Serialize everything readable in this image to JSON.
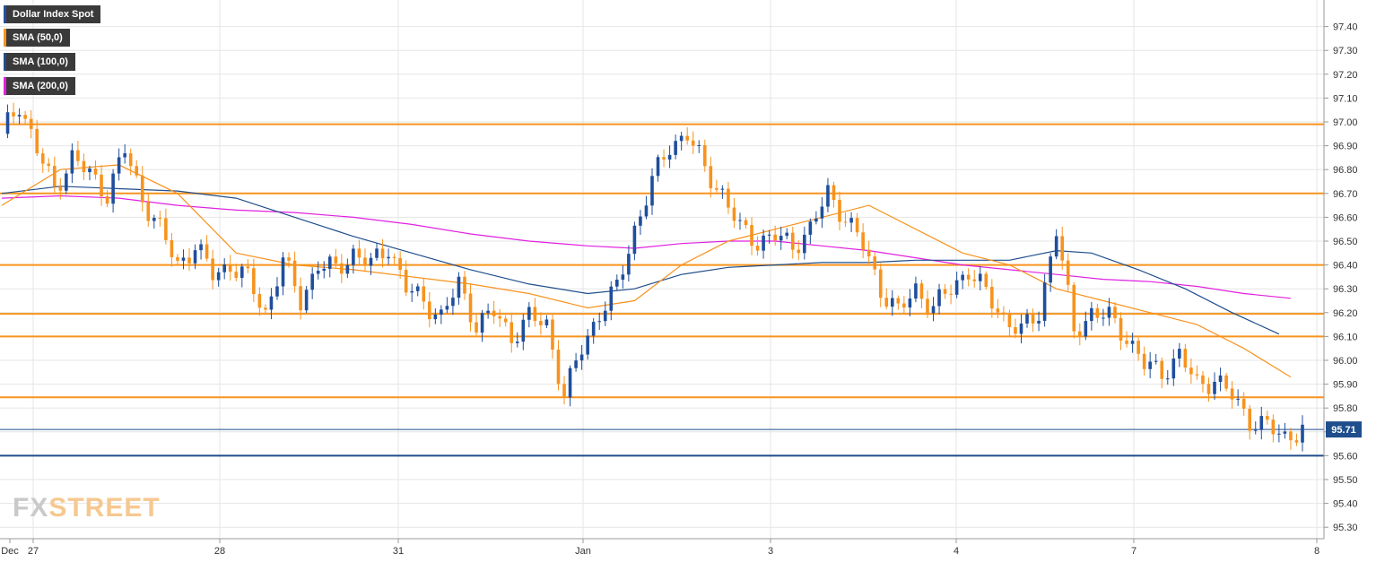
{
  "chart_data": {
    "type": "candlestick",
    "title": "Dollar Index Spot",
    "ylim": [
      95.25,
      97.5
    ],
    "yticks": [
      "97.40",
      "97.30",
      "97.20",
      "97.10",
      "97.00",
      "96.90",
      "96.80",
      "96.70",
      "96.60",
      "96.50",
      "96.40",
      "96.30",
      "96.20",
      "96.10",
      "96.00",
      "95.90",
      "95.80",
      "95.70",
      "95.60",
      "95.50",
      "95.40",
      "95.30"
    ],
    "xticks": [
      "Dec",
      "27",
      "28",
      "31",
      "Jan",
      "3",
      "4",
      "7",
      "8"
    ],
    "last_price": "95.71",
    "horizontal_levels": {
      "orange": [
        96.99,
        96.7,
        96.4,
        96.195,
        96.1,
        95.845
      ],
      "blue": [
        95.6
      ]
    },
    "legend": [
      {
        "name": "Dollar Index Spot",
        "color": "#2150a0"
      },
      {
        "name": "SMA (50,0)",
        "color": "#f7931e"
      },
      {
        "name": "SMA (100,0)",
        "color": "#1f4e8c"
      },
      {
        "name": "SMA (200,0)",
        "color": "#e020e0"
      }
    ],
    "candle_colors": {
      "up": "#1f4e9c",
      "down": "#f7931e"
    },
    "close_path": [
      [
        0,
        96.95
      ],
      [
        3,
        97.08
      ],
      [
        6,
        96.88
      ],
      [
        9,
        96.72
      ],
      [
        12,
        96.85
      ],
      [
        15,
        96.78
      ],
      [
        18,
        96.7
      ],
      [
        21,
        96.88
      ],
      [
        24,
        96.68
      ],
      [
        27,
        96.55
      ],
      [
        30,
        96.4
      ],
      [
        33,
        96.48
      ],
      [
        36,
        96.36
      ],
      [
        39,
        96.4
      ],
      [
        42,
        96.34
      ],
      [
        45,
        96.2
      ],
      [
        48,
        96.42
      ],
      [
        51,
        96.25
      ],
      [
        54,
        96.4
      ],
      [
        57,
        96.38
      ],
      [
        60,
        96.45
      ],
      [
        63,
        96.4
      ],
      [
        66,
        96.48
      ],
      [
        69,
        96.3
      ],
      [
        72,
        96.25
      ],
      [
        75,
        96.18
      ],
      [
        78,
        96.32
      ],
      [
        81,
        96.15
      ],
      [
        84,
        96.2
      ],
      [
        87,
        96.1
      ],
      [
        90,
        96.18
      ],
      [
        93,
        96.15
      ],
      [
        96,
        95.85
      ],
      [
        99,
        96.05
      ],
      [
        102,
        96.2
      ],
      [
        105,
        96.3
      ],
      [
        108,
        96.55
      ],
      [
        111,
        96.75
      ],
      [
        114,
        96.9
      ],
      [
        117,
        96.95
      ],
      [
        120,
        96.8
      ],
      [
        123,
        96.7
      ],
      [
        126,
        96.55
      ],
      [
        129,
        96.5
      ],
      [
        132,
        96.52
      ],
      [
        135,
        96.48
      ],
      [
        138,
        96.55
      ],
      [
        141,
        96.7
      ],
      [
        144,
        96.6
      ],
      [
        147,
        96.48
      ],
      [
        150,
        96.3
      ],
      [
        153,
        96.2
      ],
      [
        156,
        96.3
      ],
      [
        159,
        96.22
      ],
      [
        162,
        96.3
      ],
      [
        165,
        96.38
      ],
      [
        168,
        96.28
      ],
      [
        171,
        96.18
      ],
      [
        174,
        96.12
      ],
      [
        177,
        96.2
      ],
      [
        180,
        96.55
      ],
      [
        183,
        96.12
      ],
      [
        186,
        96.2
      ],
      [
        189,
        96.18
      ],
      [
        192,
        96.1
      ],
      [
        195,
        95.98
      ],
      [
        198,
        95.95
      ],
      [
        201,
        96.02
      ],
      [
        204,
        95.9
      ],
      [
        207,
        95.92
      ],
      [
        210,
        95.85
      ],
      [
        213,
        95.75
      ],
      [
        216,
        95.72
      ],
      [
        219,
        95.68
      ],
      [
        222,
        95.71
      ]
    ],
    "sma50": [
      [
        0,
        96.65
      ],
      [
        10,
        96.8
      ],
      [
        20,
        96.82
      ],
      [
        30,
        96.7
      ],
      [
        40,
        96.45
      ],
      [
        50,
        96.4
      ],
      [
        60,
        96.38
      ],
      [
        70,
        96.35
      ],
      [
        80,
        96.32
      ],
      [
        90,
        96.28
      ],
      [
        100,
        96.22
      ],
      [
        108,
        96.25
      ],
      [
        116,
        96.4
      ],
      [
        124,
        96.5
      ],
      [
        132,
        96.55
      ],
      [
        140,
        96.6
      ],
      [
        148,
        96.65
      ],
      [
        156,
        96.55
      ],
      [
        164,
        96.45
      ],
      [
        172,
        96.4
      ],
      [
        180,
        96.3
      ],
      [
        188,
        96.25
      ],
      [
        196,
        96.2
      ],
      [
        204,
        96.15
      ],
      [
        212,
        96.05
      ],
      [
        220,
        95.93
      ]
    ],
    "sma100": [
      [
        0,
        96.7
      ],
      [
        10,
        96.73
      ],
      [
        20,
        96.72
      ],
      [
        30,
        96.71
      ],
      [
        40,
        96.68
      ],
      [
        50,
        96.6
      ],
      [
        60,
        96.52
      ],
      [
        70,
        96.45
      ],
      [
        80,
        96.38
      ],
      [
        90,
        96.32
      ],
      [
        100,
        96.28
      ],
      [
        108,
        96.3
      ],
      [
        116,
        96.36
      ],
      [
        124,
        96.39
      ],
      [
        132,
        96.4
      ],
      [
        140,
        96.41
      ],
      [
        148,
        96.41
      ],
      [
        156,
        96.42
      ],
      [
        164,
        96.42
      ],
      [
        172,
        96.42
      ],
      [
        180,
        96.46
      ],
      [
        186,
        96.45
      ],
      [
        194,
        96.38
      ],
      [
        202,
        96.3
      ],
      [
        210,
        96.2
      ],
      [
        218,
        96.11
      ]
    ],
    "sma200": [
      [
        0,
        96.68
      ],
      [
        10,
        96.69
      ],
      [
        20,
        96.68
      ],
      [
        30,
        96.65
      ],
      [
        40,
        96.63
      ],
      [
        50,
        96.62
      ],
      [
        60,
        96.6
      ],
      [
        70,
        96.57
      ],
      [
        80,
        96.53
      ],
      [
        90,
        96.5
      ],
      [
        100,
        96.48
      ],
      [
        108,
        96.47
      ],
      [
        116,
        96.49
      ],
      [
        124,
        96.5
      ],
      [
        132,
        96.5
      ],
      [
        140,
        96.48
      ],
      [
        148,
        96.46
      ],
      [
        156,
        96.43
      ],
      [
        164,
        96.4
      ],
      [
        172,
        96.38
      ],
      [
        180,
        96.36
      ],
      [
        188,
        96.34
      ],
      [
        196,
        96.33
      ],
      [
        204,
        96.31
      ],
      [
        212,
        96.28
      ],
      [
        220,
        96.26
      ]
    ],
    "grid": true
  },
  "watermark": {
    "part1": "FX",
    "part2": "STREET"
  }
}
